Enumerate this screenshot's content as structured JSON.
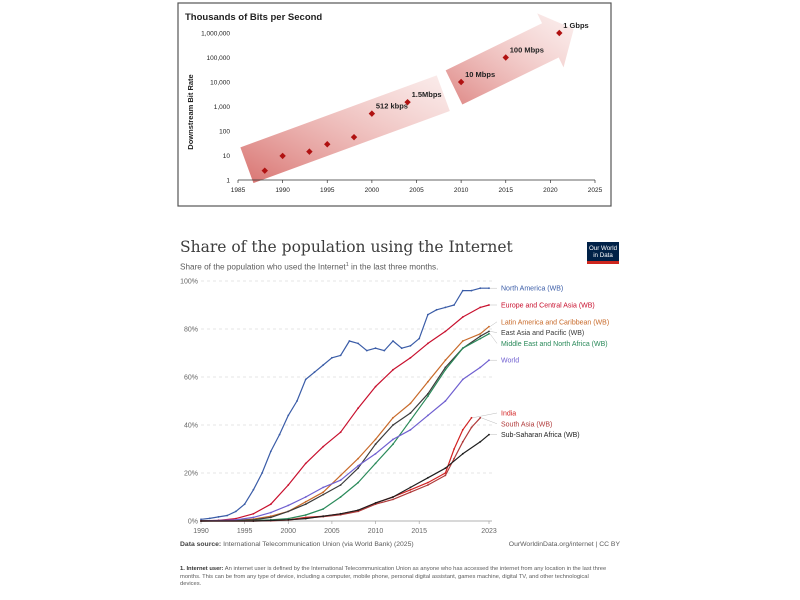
{
  "chart_data": [
    {
      "type": "scatter",
      "title": "Thousands of Bits per Second",
      "ylabel": "Downstream Bit Rate",
      "xlabel": "",
      "y_scale": "log",
      "xlim": [
        1985,
        2025
      ],
      "ylim": [
        1,
        1000000
      ],
      "x_ticks": [
        "1985",
        "1990",
        "1995",
        "2000",
        "2005",
        "2010",
        "2015",
        "2020",
        "2025"
      ],
      "y_ticks": [
        "1",
        "10",
        "100",
        "1,000",
        "10,000",
        "100,000",
        "1,000,000"
      ],
      "points": [
        {
          "x": 1988,
          "y": 2.4,
          "label": ""
        },
        {
          "x": 1990,
          "y": 9.6,
          "label": ""
        },
        {
          "x": 1993,
          "y": 14.4,
          "label": ""
        },
        {
          "x": 1995,
          "y": 28.8,
          "label": ""
        },
        {
          "x": 1998,
          "y": 56,
          "label": ""
        },
        {
          "x": 2000,
          "y": 512,
          "label": "512 kbps"
        },
        {
          "x": 2004,
          "y": 1500,
          "label": "1.5Mbps"
        },
        {
          "x": 2010,
          "y": 10000,
          "label": "10 Mbps"
        },
        {
          "x": 2015,
          "y": 100000,
          "label": "100 Mbps"
        },
        {
          "x": 2021,
          "y": 1000000,
          "label": "1 Gbps"
        }
      ],
      "grid": false,
      "marker_color": "#b01111",
      "arrow_color": "#d9736f"
    },
    {
      "type": "line",
      "title": "Share of the population using the Internet",
      "subtitle": "Share of the population who used the Internet",
      "subtitle_sup": "1",
      "subtitle_tail": " in the last three months.",
      "xlim": [
        1990,
        2023
      ],
      "ylim": [
        0,
        100
      ],
      "x_ticks": [
        "1990",
        "1995",
        "2000",
        "2005",
        "2010",
        "2015",
        "2023"
      ],
      "y_ticks": [
        "0%",
        "20%",
        "40%",
        "60%",
        "80%",
        "100%"
      ],
      "grid": true,
      "legend": "right, inline labels",
      "series": [
        {
          "name": "North America (WB)",
          "color": "#3a5ca7",
          "x": [
            1990,
            1991,
            1992,
            1993,
            1994,
            1995,
            1996,
            1997,
            1998,
            1999,
            2000,
            2001,
            2002,
            2003,
            2004,
            2005,
            2006,
            2007,
            2008,
            2009,
            2010,
            2011,
            2012,
            2013,
            2014,
            2015,
            2016,
            2017,
            2018,
            2019,
            2020,
            2021,
            2022,
            2023
          ],
          "y": [
            0.7,
            1.1,
            1.7,
            2.3,
            4,
            7,
            13,
            20,
            29,
            36,
            44,
            50,
            59,
            62,
            65,
            68,
            69,
            75,
            74,
            71,
            72,
            71,
            75,
            72,
            73,
            76,
            86,
            88,
            89,
            90,
            96,
            96,
            97,
            97
          ]
        },
        {
          "name": "Europe and Central Asia (WB)",
          "color": "#c8102e",
          "x": [
            1990,
            1992,
            1994,
            1996,
            1998,
            2000,
            2002,
            2004,
            2006,
            2008,
            2010,
            2012,
            2014,
            2016,
            2018,
            2020,
            2022,
            2023
          ],
          "y": [
            0.1,
            0.3,
            1,
            3,
            7,
            15,
            24,
            31,
            37,
            47,
            56,
            63,
            68,
            74,
            79,
            85,
            89,
            90
          ]
        },
        {
          "name": "Latin America and Caribbean (WB)",
          "color": "#c86a2a",
          "x": [
            1990,
            1994,
            1996,
            1998,
            2000,
            2002,
            2004,
            2006,
            2008,
            2010,
            2012,
            2014,
            2016,
            2018,
            2020,
            2022,
            2023
          ],
          "y": [
            0,
            0.3,
            0.8,
            2,
            4,
            8,
            12,
            19,
            26,
            34,
            43,
            49,
            58,
            67,
            75,
            78,
            81
          ]
        },
        {
          "name": "East Asia and Pacific (WB)",
          "color": "#3b3b3b",
          "x": [
            1990,
            1994,
            1996,
            1998,
            2000,
            2002,
            2004,
            2006,
            2008,
            2010,
            2012,
            2014,
            2016,
            2018,
            2020,
            2022,
            2023
          ],
          "y": [
            0,
            0.2,
            0.5,
            1.5,
            4,
            7,
            11,
            15,
            22,
            32,
            40,
            45,
            53,
            64,
            72,
            77,
            79
          ]
        },
        {
          "name": "Middle East and North Africa (WB)",
          "color": "#2a8a5a",
          "x": [
            1990,
            1996,
            1998,
            2000,
            2002,
            2004,
            2006,
            2008,
            2010,
            2012,
            2014,
            2016,
            2018,
            2020,
            2022,
            2023
          ],
          "y": [
            0,
            0.2,
            0.5,
            1,
            2.5,
            5,
            10,
            16,
            24,
            32,
            42,
            52,
            63,
            72,
            76,
            78
          ]
        },
        {
          "name": "World",
          "color": "#6f5fd0",
          "x": [
            1990,
            1994,
            1996,
            1998,
            2000,
            2002,
            2004,
            2006,
            2008,
            2010,
            2012,
            2014,
            2016,
            2018,
            2020,
            2022,
            2023
          ],
          "y": [
            0,
            0.5,
            1.5,
            3.5,
            6.5,
            10,
            14,
            17,
            23,
            28,
            34,
            38,
            44,
            50,
            59,
            64,
            67
          ]
        },
        {
          "name": "India",
          "color": "#d22222",
          "x": [
            1990,
            1996,
            1998,
            2000,
            2002,
            2004,
            2006,
            2008,
            2010,
            2012,
            2014,
            2016,
            2018,
            2019,
            2020,
            2021
          ],
          "y": [
            0,
            0,
            0.1,
            0.5,
            1.5,
            2,
            3,
            4.4,
            7.5,
            10,
            13,
            16,
            20,
            30,
            38,
            43
          ]
        },
        {
          "name": "South Asia (WB)",
          "color": "#b03a3a",
          "x": [
            1990,
            1996,
            1998,
            2000,
            2002,
            2004,
            2006,
            2008,
            2010,
            2012,
            2014,
            2016,
            2018,
            2019,
            2020,
            2021,
            2022
          ],
          "y": [
            0,
            0,
            0.1,
            0.4,
            1.2,
            1.8,
            2.6,
            4,
            7,
            9,
            12,
            15,
            19,
            26,
            33,
            39,
            43
          ]
        },
        {
          "name": "Sub-Saharan Africa (WB)",
          "color": "#1e1e1e",
          "x": [
            1990,
            1996,
            1998,
            2000,
            2002,
            2004,
            2006,
            2008,
            2010,
            2012,
            2014,
            2016,
            2018,
            2020,
            2022,
            2023
          ],
          "y": [
            0,
            0,
            0.2,
            0.5,
            1,
            2,
            3,
            4.5,
            7.5,
            10,
            14,
            18,
            22,
            28,
            33,
            36
          ]
        }
      ]
    }
  ],
  "footer": {
    "source_label": "Data source:",
    "source_text": " International Telecommunication Union (via World Bank) (2025)",
    "url": "OurWorldinData.org/internet | CC BY"
  },
  "logo": {
    "line1": "Our World",
    "line2": "in Data"
  },
  "note": {
    "label": "1. Internet user:",
    "text": " An internet user is defined by the International Telecommunication Union as anyone who has accessed the internet from any location in the last three months. This can be from any type of device, including a computer, mobile phone, personal digital assistant, games machine, digital TV, and other technological devices."
  }
}
